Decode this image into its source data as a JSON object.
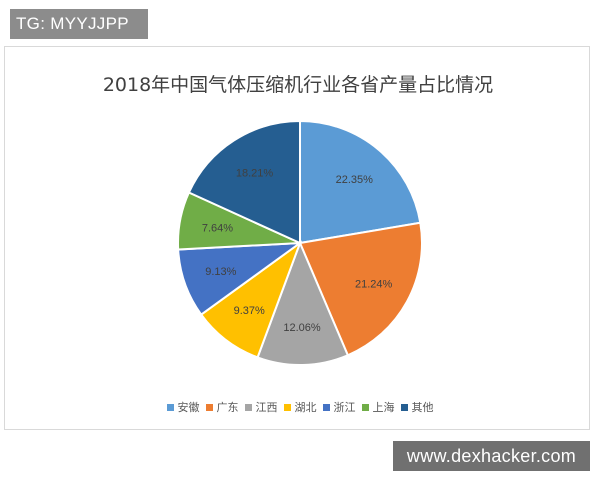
{
  "watermark_top": "TG: MYYJJPP",
  "watermark_bottom": "www.dexhacker.com",
  "colors": {
    "安徽": "#5b9bd5",
    "广东": "#ed7d31",
    "江西": "#a5a5a5",
    "湖北": "#ffc000",
    "浙江": "#4472c4",
    "上海": "#70ad47",
    "其他": "#255e91"
  },
  "chart_data": {
    "type": "pie",
    "title": "2018年中国气体压缩机行业各省产量占比情况",
    "categories": [
      "安徽",
      "广东",
      "江西",
      "湖北",
      "浙江",
      "上海",
      "其他"
    ],
    "values": [
      22.35,
      21.24,
      12.06,
      9.37,
      9.13,
      7.64,
      18.21
    ],
    "labels": [
      "22.35%",
      "21.24%",
      "12.06%",
      "9.37%",
      "9.13%",
      "7.64%",
      "18.21%"
    ],
    "start_angle": "12 o'clock",
    "direction": "clockwise",
    "legend_position": "bottom"
  }
}
